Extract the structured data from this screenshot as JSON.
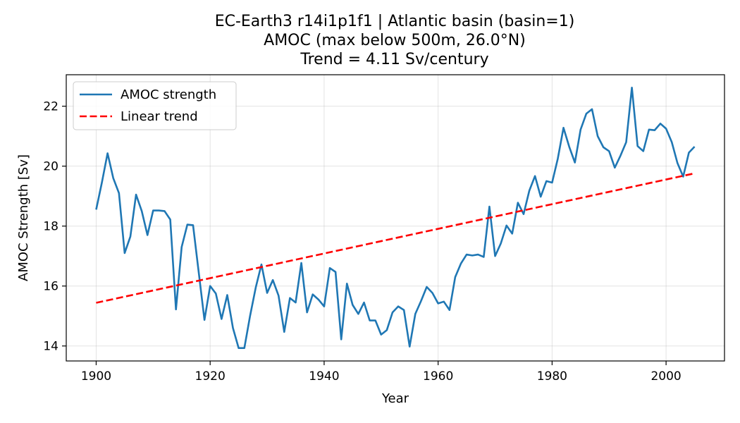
{
  "chart_data": {
    "type": "line",
    "title_lines": [
      "EC-Earth3 r14i1p1f1 | Atlantic basin (basin=1)",
      "AMOC (max below 500m, 26.0°N)",
      "Trend = 4.11 Sv/century"
    ],
    "xlabel": "Year",
    "ylabel": "AMOC Strength [Sv]",
    "xlim": [
      1894.75,
      2010.25
    ],
    "ylim": [
      13.5,
      23.05
    ],
    "xticks": [
      1900,
      1920,
      1940,
      1960,
      1980,
      2000
    ],
    "yticks": [
      14,
      16,
      18,
      20,
      22
    ],
    "grid": true,
    "legend_placement": "upper-left",
    "series": [
      {
        "name": "AMOC strength",
        "color": "#1f77b4",
        "style": "solid",
        "x": [
          1900,
          1901,
          1902,
          1903,
          1904,
          1905,
          1906,
          1907,
          1908,
          1909,
          1910,
          1911,
          1912,
          1913,
          1914,
          1915,
          1916,
          1917,
          1918,
          1919,
          1920,
          1921,
          1922,
          1923,
          1924,
          1925,
          1926,
          1927,
          1928,
          1929,
          1930,
          1931,
          1932,
          1933,
          1934,
          1935,
          1936,
          1937,
          1938,
          1939,
          1940,
          1941,
          1942,
          1943,
          1944,
          1945,
          1946,
          1947,
          1948,
          1949,
          1950,
          1951,
          1952,
          1953,
          1954,
          1955,
          1956,
          1957,
          1958,
          1959,
          1960,
          1961,
          1962,
          1963,
          1964,
          1965,
          1966,
          1967,
          1968,
          1969,
          1970,
          1971,
          1972,
          1973,
          1974,
          1975,
          1976,
          1977,
          1978,
          1979,
          1980,
          1981,
          1982,
          1983,
          1984,
          1985,
          1986,
          1987,
          1988,
          1989,
          1990,
          1991,
          1992,
          1993,
          1994,
          1995,
          1996,
          1997,
          1998,
          1999,
          2000,
          2001,
          2002,
          2003,
          2004,
          2005
        ],
        "y": [
          18.55,
          19.45,
          20.43,
          19.6,
          19.1,
          17.1,
          17.65,
          19.05,
          18.5,
          17.7,
          18.52,
          18.52,
          18.5,
          18.22,
          15.22,
          17.3,
          18.05,
          18.03,
          16.45,
          14.87,
          16.0,
          15.75,
          14.9,
          15.7,
          14.6,
          13.93,
          13.93,
          15.0,
          15.95,
          16.72,
          15.77,
          16.2,
          15.68,
          14.47,
          15.6,
          15.45,
          16.77,
          15.12,
          15.72,
          15.55,
          15.32,
          16.6,
          16.47,
          14.22,
          16.08,
          15.37,
          15.07,
          15.45,
          14.85,
          14.85,
          14.38,
          14.53,
          15.12,
          15.32,
          15.2,
          13.98,
          15.07,
          15.5,
          15.97,
          15.77,
          15.42,
          15.48,
          15.2,
          16.3,
          16.75,
          17.05,
          17.02,
          17.05,
          16.97,
          18.65,
          17.0,
          17.42,
          18.02,
          17.75,
          18.78,
          18.4,
          19.18,
          19.67,
          18.98,
          19.5,
          19.45,
          20.25,
          21.28,
          20.65,
          20.12,
          21.22,
          21.75,
          21.9,
          21.0,
          20.63,
          20.5,
          19.95,
          20.35,
          20.8,
          22.62,
          20.67,
          20.5,
          21.22,
          21.2,
          21.42,
          21.25,
          20.8,
          20.1,
          19.65,
          20.45,
          20.65
        ]
      },
      {
        "name": "Linear trend",
        "color": "#ff0000",
        "style": "dashed",
        "x": [
          1900,
          2005
        ],
        "y": [
          15.44,
          19.76
        ]
      }
    ]
  }
}
